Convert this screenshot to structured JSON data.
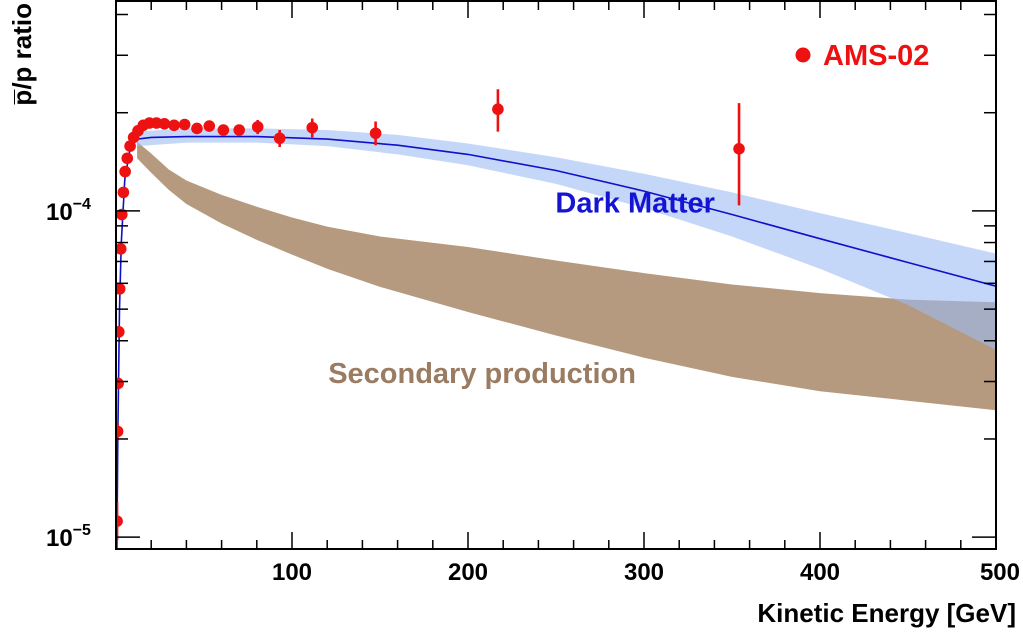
{
  "chart_data": {
    "type": "scatter",
    "xlabel": "Kinetic Energy [GeV]",
    "ylabel": "p̅/p ratio",
    "xlim": [
      0,
      500
    ],
    "ylim": [
      9.2e-06,
      0.00044
    ],
    "yscale": "log",
    "grid": false,
    "legend_position": "top-right",
    "x_ticks": [
      {
        "value": 100,
        "label": "100"
      },
      {
        "value": 200,
        "label": "200"
      },
      {
        "value": 300,
        "label": "300"
      },
      {
        "value": 400,
        "label": "400"
      },
      {
        "value": 500,
        "label": "500"
      }
    ],
    "y_ticks": [
      {
        "value": 1e-05,
        "base": "10",
        "exp": "−5"
      },
      {
        "value": 0.0001,
        "base": "10",
        "exp": "−4"
      }
    ],
    "annotations": [
      {
        "text": "Dark Matter",
        "color": "#1414d2",
        "x": 295,
        "y": 9.9e-05
      },
      {
        "text": "Secondary production",
        "color": "#9a7c62",
        "x": 208,
        "y": 2.97e-05
      }
    ],
    "series": [
      {
        "name": "AMS-02",
        "kind": "points",
        "color": "#ee1111",
        "points": [
          {
            "x": 0.6,
            "y": 1.12e-05,
            "lo": 9.8e-06,
            "hi": 1.28e-05
          },
          {
            "x": 0.9,
            "y": 2.11e-05,
            "lo": 1.98e-05,
            "hi": 2.24e-05
          },
          {
            "x": 1.2,
            "y": 2.96e-05,
            "lo": 2.86e-05,
            "hi": 3.06e-05
          },
          {
            "x": 1.6,
            "y": 4.26e-05,
            "lo": 4.16e-05,
            "hi": 4.36e-05
          },
          {
            "x": 2.1,
            "y": 5.77e-05,
            "lo": 5.67e-05,
            "hi": 5.87e-05
          },
          {
            "x": 2.7,
            "y": 7.65e-05,
            "lo": 7.55e-05,
            "hi": 7.75e-05
          },
          {
            "x": 3.3,
            "y": 9.75e-05,
            "lo": 9.65e-05,
            "hi": 9.85e-05
          },
          {
            "x": 4.2,
            "y": 0.000114,
            "lo": 0.000113,
            "hi": 0.000115
          },
          {
            "x": 5.2,
            "y": 0.000132,
            "lo": 0.000131,
            "hi": 0.000133
          },
          {
            "x": 6.4,
            "y": 0.000145,
            "lo": 0.000144,
            "hi": 0.000146
          },
          {
            "x": 8.0,
            "y": 0.000158,
            "lo": 0.000157,
            "hi": 0.000159
          },
          {
            "x": 10.0,
            "y": 0.000168,
            "lo": 0.000167,
            "hi": 0.000169
          },
          {
            "x": 12.5,
            "y": 0.000176,
            "lo": 0.000175,
            "hi": 0.000177
          },
          {
            "x": 15.5,
            "y": 0.000183,
            "lo": 0.000182,
            "hi": 0.000184
          },
          {
            "x": 19.0,
            "y": 0.000186,
            "lo": 0.000185,
            "hi": 0.000187
          },
          {
            "x": 23.0,
            "y": 0.000186,
            "lo": 0.000185,
            "hi": 0.000187
          },
          {
            "x": 27.5,
            "y": 0.000185,
            "lo": 0.000184,
            "hi": 0.000186
          },
          {
            "x": 33.0,
            "y": 0.000183,
            "lo": 0.000182,
            "hi": 0.000184
          },
          {
            "x": 39.0,
            "y": 0.000184,
            "lo": 0.000183,
            "hi": 0.000185
          },
          {
            "x": 46.0,
            "y": 0.000179,
            "lo": 0.000177,
            "hi": 0.000181
          },
          {
            "x": 53.0,
            "y": 0.000182,
            "lo": 0.000179,
            "hi": 0.000185
          },
          {
            "x": 61.0,
            "y": 0.000177,
            "lo": 0.000174,
            "hi": 0.00018
          },
          {
            "x": 70.0,
            "y": 0.000177,
            "lo": 0.000172,
            "hi": 0.000182
          },
          {
            "x": 80.5,
            "y": 0.000181,
            "lo": 0.000172,
            "hi": 0.00019
          },
          {
            "x": 93.0,
            "y": 0.000167,
            "lo": 0.000157,
            "hi": 0.000177
          },
          {
            "x": 111.5,
            "y": 0.00018,
            "lo": 0.000168,
            "hi": 0.000192
          },
          {
            "x": 147.5,
            "y": 0.000173,
            "lo": 0.000159,
            "hi": 0.000188
          },
          {
            "x": 217.0,
            "y": 0.000205,
            "lo": 0.000175,
            "hi": 0.000236
          },
          {
            "x": 354.0,
            "y": 0.000155,
            "lo": 0.000104,
            "hi": 0.000214
          }
        ]
      },
      {
        "name": "Dark Matter",
        "kind": "line-band",
        "color": "#1010c8",
        "band_color": "#9dbdf5",
        "line": [
          {
            "x": 0.5,
            "y": 9.2e-06
          },
          {
            "x": 1,
            "y": 2e-05
          },
          {
            "x": 2,
            "y": 5e-05
          },
          {
            "x": 3,
            "y": 8e-05
          },
          {
            "x": 5,
            "y": 0.000125
          },
          {
            "x": 8,
            "y": 0.000155
          },
          {
            "x": 12,
            "y": 0.000166
          },
          {
            "x": 20,
            "y": 0.000168
          },
          {
            "x": 40,
            "y": 0.000169
          },
          {
            "x": 80,
            "y": 0.000169
          },
          {
            "x": 120,
            "y": 0.000166
          },
          {
            "x": 160,
            "y": 0.000159
          },
          {
            "x": 200,
            "y": 0.000149
          },
          {
            "x": 250,
            "y": 0.000133
          },
          {
            "x": 300,
            "y": 0.000115
          },
          {
            "x": 350,
            "y": 9.75e-05
          },
          {
            "x": 400,
            "y": 8.22e-05
          },
          {
            "x": 450,
            "y": 6.95e-05
          },
          {
            "x": 500,
            "y": 5.88e-05
          }
        ],
        "upper": [
          {
            "x": 12,
            "y": 0.000175
          },
          {
            "x": 40,
            "y": 0.000179
          },
          {
            "x": 80,
            "y": 0.000179
          },
          {
            "x": 120,
            "y": 0.000177
          },
          {
            "x": 160,
            "y": 0.000171
          },
          {
            "x": 200,
            "y": 0.000161
          },
          {
            "x": 250,
            "y": 0.000146
          },
          {
            "x": 300,
            "y": 0.00013
          },
          {
            "x": 350,
            "y": 0.000114
          },
          {
            "x": 400,
            "y": 9.85e-05
          },
          {
            "x": 450,
            "y": 8.55e-05
          },
          {
            "x": 500,
            "y": 7.4e-05
          }
        ],
        "lower": [
          {
            "x": 12,
            "y": 0.000158
          },
          {
            "x": 40,
            "y": 0.000162
          },
          {
            "x": 80,
            "y": 0.000162
          },
          {
            "x": 120,
            "y": 0.000158
          },
          {
            "x": 160,
            "y": 0.000149
          },
          {
            "x": 200,
            "y": 0.000138
          },
          {
            "x": 250,
            "y": 0.000121
          },
          {
            "x": 300,
            "y": 0.000102
          },
          {
            "x": 350,
            "y": 8.35e-05
          },
          {
            "x": 400,
            "y": 6.65e-05
          },
          {
            "x": 450,
            "y": 5.15e-05
          },
          {
            "x": 500,
            "y": 3.75e-05
          }
        ]
      },
      {
        "name": "Secondary production",
        "kind": "band",
        "color": "#b59a7f",
        "upper": [
          {
            "x": 12,
            "y": 0.000163
          },
          {
            "x": 20,
            "y": 0.00015
          },
          {
            "x": 30,
            "y": 0.000134
          },
          {
            "x": 40,
            "y": 0.000124
          },
          {
            "x": 60,
            "y": 0.000112
          },
          {
            "x": 80,
            "y": 0.000103
          },
          {
            "x": 100,
            "y": 9.55e-05
          },
          {
            "x": 120,
            "y": 8.95e-05
          },
          {
            "x": 150,
            "y": 8.35e-05
          },
          {
            "x": 200,
            "y": 7.75e-05
          },
          {
            "x": 250,
            "y": 7.05e-05
          },
          {
            "x": 300,
            "y": 6.45e-05
          },
          {
            "x": 350,
            "y": 5.95e-05
          },
          {
            "x": 400,
            "y": 5.6e-05
          },
          {
            "x": 450,
            "y": 5.35e-05
          },
          {
            "x": 500,
            "y": 5.25e-05
          }
        ],
        "lower": [
          {
            "x": 12,
            "y": 0.000145
          },
          {
            "x": 20,
            "y": 0.000131
          },
          {
            "x": 30,
            "y": 0.000116
          },
          {
            "x": 40,
            "y": 0.000105
          },
          {
            "x": 60,
            "y": 9.15e-05
          },
          {
            "x": 80,
            "y": 8.15e-05
          },
          {
            "x": 100,
            "y": 7.35e-05
          },
          {
            "x": 120,
            "y": 6.65e-05
          },
          {
            "x": 150,
            "y": 5.85e-05
          },
          {
            "x": 200,
            "y": 4.9e-05
          },
          {
            "x": 250,
            "y": 4.15e-05
          },
          {
            "x": 300,
            "y": 3.55e-05
          },
          {
            "x": 350,
            "y": 3.1e-05
          },
          {
            "x": 400,
            "y": 2.8e-05
          },
          {
            "x": 450,
            "y": 2.62e-05
          },
          {
            "x": 500,
            "y": 2.45e-05
          }
        ]
      }
    ]
  }
}
